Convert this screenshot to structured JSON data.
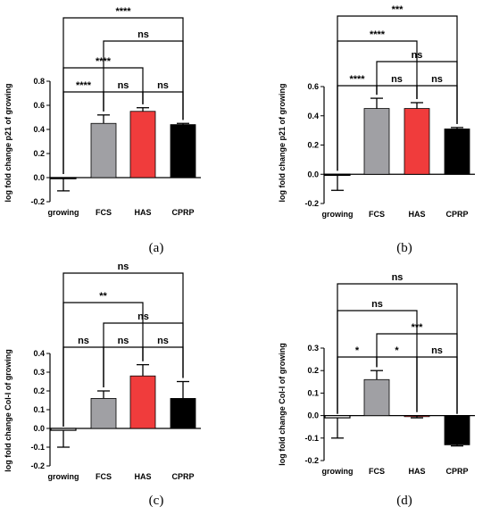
{
  "colors": {
    "growing": "#ffffff",
    "FCS": "#a0a0a4",
    "HAS": "#f03c3c",
    "CPRP": "#000000",
    "axis": "#000000"
  },
  "chart_data": [
    {
      "id": "a",
      "type": "bar",
      "panel_label": "(a)",
      "ylabel": "log fold change p21 of growing",
      "ylim": [
        -0.2,
        0.8
      ],
      "yticks": [
        "-0.2",
        "0.0",
        "0.2",
        "0.4",
        "0.6",
        "0.8"
      ],
      "categories": [
        "growing",
        "FCS",
        "HAS",
        "CPRP"
      ],
      "values": [
        0.0,
        0.45,
        0.55,
        0.44
      ],
      "errors": [
        0.11,
        0.07,
        0.03,
        0.01
      ],
      "error_direction": [
        "down",
        "up",
        "up",
        "up"
      ],
      "comparisons": [
        {
          "pair": [
            "growing",
            "CPRP"
          ],
          "label": "****"
        },
        {
          "pair": [
            "FCS",
            "CPRP"
          ],
          "label": "ns"
        },
        {
          "pair": [
            "growing",
            "HAS"
          ],
          "label": "****"
        },
        {
          "pair": [
            "growing",
            "FCS"
          ],
          "label": "****"
        },
        {
          "pair": [
            "FCS",
            "HAS"
          ],
          "label": "ns"
        },
        {
          "pair": [
            "HAS",
            "CPRP"
          ],
          "label": "ns"
        }
      ]
    },
    {
      "id": "b",
      "type": "bar",
      "panel_label": "(b)",
      "ylabel": "log fold change p21 of growing",
      "ylim": [
        -0.2,
        0.6
      ],
      "yticks": [
        "-0.2",
        "0.0",
        "0.2",
        "0.4",
        "0.6"
      ],
      "categories": [
        "growing",
        "FCS",
        "HAS",
        "CPRP"
      ],
      "values": [
        0.0,
        0.45,
        0.45,
        0.31
      ],
      "errors": [
        0.11,
        0.07,
        0.04,
        0.01
      ],
      "error_direction": [
        "down",
        "up",
        "up",
        "up"
      ],
      "comparisons": [
        {
          "pair": [
            "growing",
            "CPRP"
          ],
          "label": "***"
        },
        {
          "pair": [
            "growing",
            "HAS"
          ],
          "label": "****"
        },
        {
          "pair": [
            "FCS",
            "CPRP"
          ],
          "label": "ns"
        },
        {
          "pair": [
            "growing",
            "FCS"
          ],
          "label": "****"
        },
        {
          "pair": [
            "FCS",
            "HAS"
          ],
          "label": "ns"
        },
        {
          "pair": [
            "HAS",
            "CPRP"
          ],
          "label": "ns"
        }
      ]
    },
    {
      "id": "c",
      "type": "bar",
      "panel_label": "(c)",
      "ylabel": "log fold change Col-I of growing",
      "ylim": [
        -0.2,
        0.4
      ],
      "yticks": [
        "-0.2",
        "-0.1",
        "0.0",
        "0.1",
        "0.2",
        "0.3",
        "0.4"
      ],
      "categories": [
        "growing",
        "FCS",
        "HAS",
        "CPRP"
      ],
      "values": [
        -0.01,
        0.16,
        0.28,
        0.16
      ],
      "errors": [
        0.09,
        0.04,
        0.06,
        0.09
      ],
      "error_direction": [
        "down",
        "up",
        "up",
        "up"
      ],
      "comparisons": [
        {
          "pair": [
            "growing",
            "CPRP"
          ],
          "label": "ns"
        },
        {
          "pair": [
            "growing",
            "HAS"
          ],
          "label": "**"
        },
        {
          "pair": [
            "FCS",
            "CPRP"
          ],
          "label": "ns"
        },
        {
          "pair": [
            "growing",
            "FCS"
          ],
          "label": "ns"
        },
        {
          "pair": [
            "FCS",
            "HAS"
          ],
          "label": "ns"
        },
        {
          "pair": [
            "HAS",
            "CPRP"
          ],
          "label": "ns"
        }
      ]
    },
    {
      "id": "d",
      "type": "bar",
      "panel_label": "(d)",
      "ylabel": "log fold change Col-I of growing",
      "ylim": [
        -0.2,
        0.3
      ],
      "yticks": [
        "-0.2",
        "-0.1",
        "0.0",
        "0.1",
        "0.2",
        "0.3"
      ],
      "categories": [
        "growing",
        "FCS",
        "HAS",
        "CPRP"
      ],
      "values": [
        -0.01,
        0.16,
        0.0,
        -0.13
      ],
      "errors": [
        0.09,
        0.04,
        0.01,
        0.005
      ],
      "error_direction": [
        "down",
        "up",
        "down",
        "down"
      ],
      "comparisons": [
        {
          "pair": [
            "growing",
            "CPRP"
          ],
          "label": "ns"
        },
        {
          "pair": [
            "growing",
            "HAS"
          ],
          "label": "ns"
        },
        {
          "pair": [
            "FCS",
            "CPRP"
          ],
          "label": "***"
        },
        {
          "pair": [
            "growing",
            "FCS"
          ],
          "label": "*"
        },
        {
          "pair": [
            "FCS",
            "HAS"
          ],
          "label": "*"
        },
        {
          "pair": [
            "HAS",
            "CPRP"
          ],
          "label": "ns"
        }
      ]
    }
  ]
}
